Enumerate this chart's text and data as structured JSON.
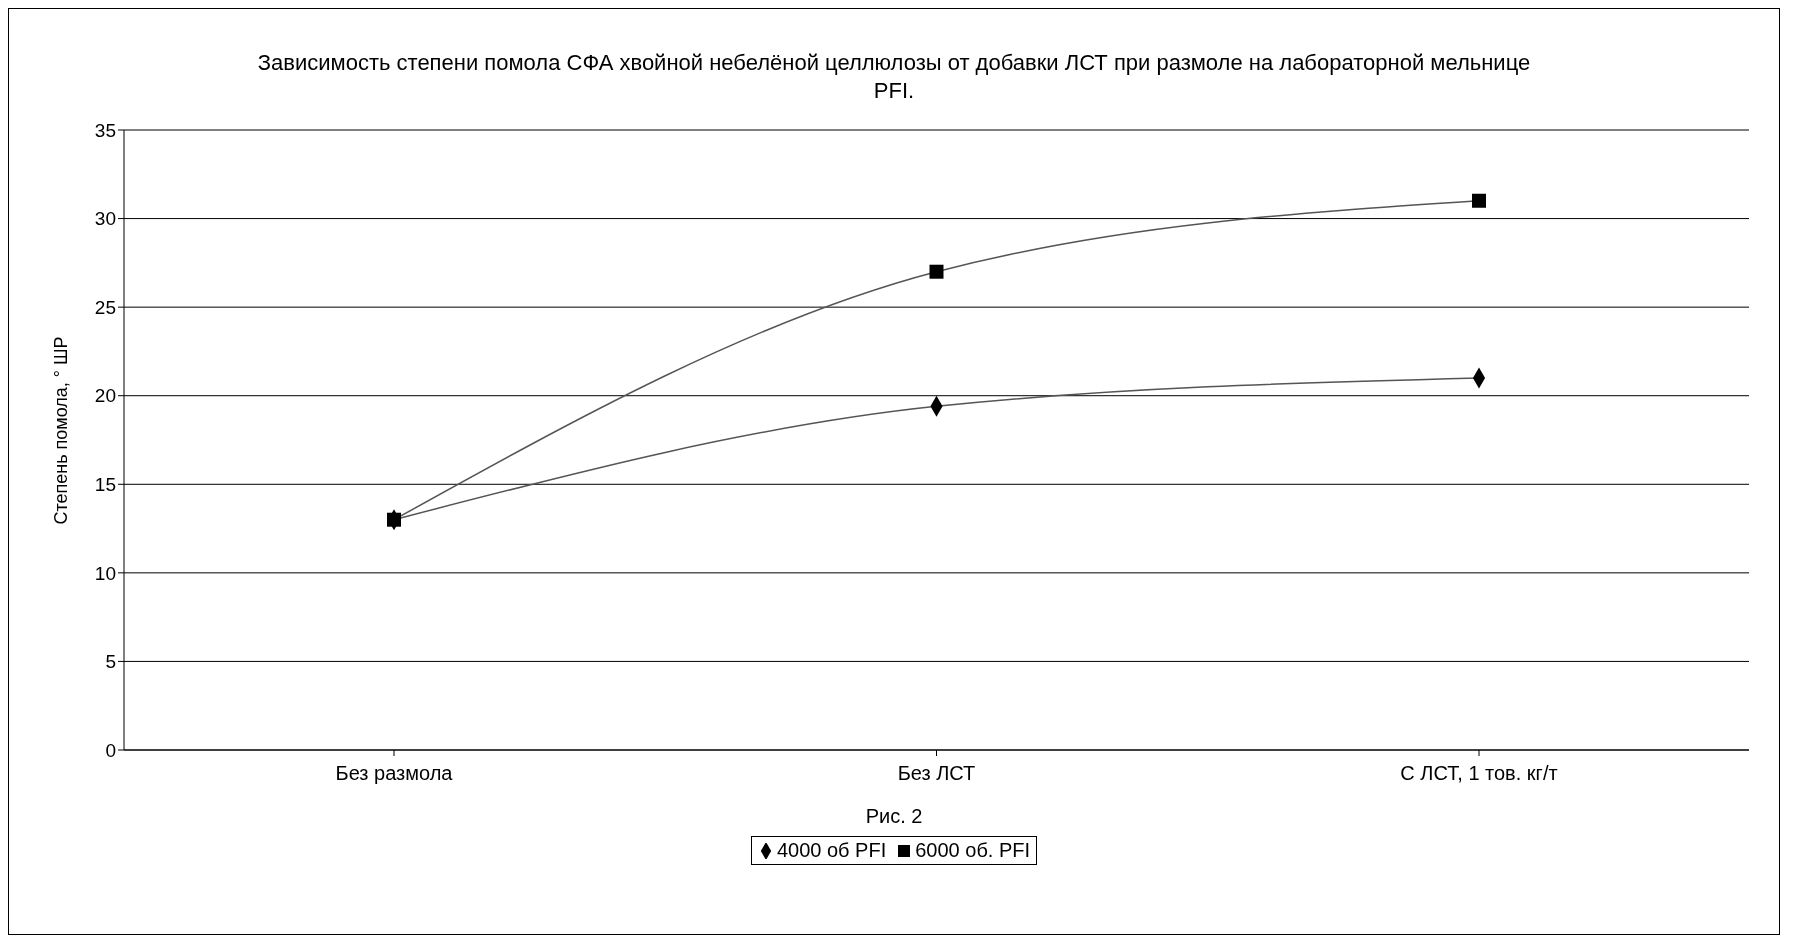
{
  "chart_data": {
    "type": "line",
    "title": "Зависимость степени помола СФА хвойной небелёной целлюлозы от добавки ЛСТ при размоле на лабораторной мельнице PFI.",
    "xlabel": "Рис. 2",
    "ylabel": "Степень помола, ° ШР",
    "categories": [
      "Без размола",
      "Без ЛСТ",
      "С ЛСТ, 1 тов. кг/т"
    ],
    "series": [
      {
        "name": "4000 об PFI",
        "color": "#000000",
        "marker": "diamond",
        "values": [
          13,
          19.4,
          21
        ]
      },
      {
        "name": "6000 об. PFI",
        "color": "#000000",
        "marker": "square",
        "values": [
          13,
          27,
          31
        ]
      }
    ],
    "ylim": [
      0,
      35
    ],
    "yticks": [
      0,
      5,
      10,
      15,
      20,
      25,
      30,
      35
    ],
    "grid": "y",
    "legend": "bottom"
  }
}
